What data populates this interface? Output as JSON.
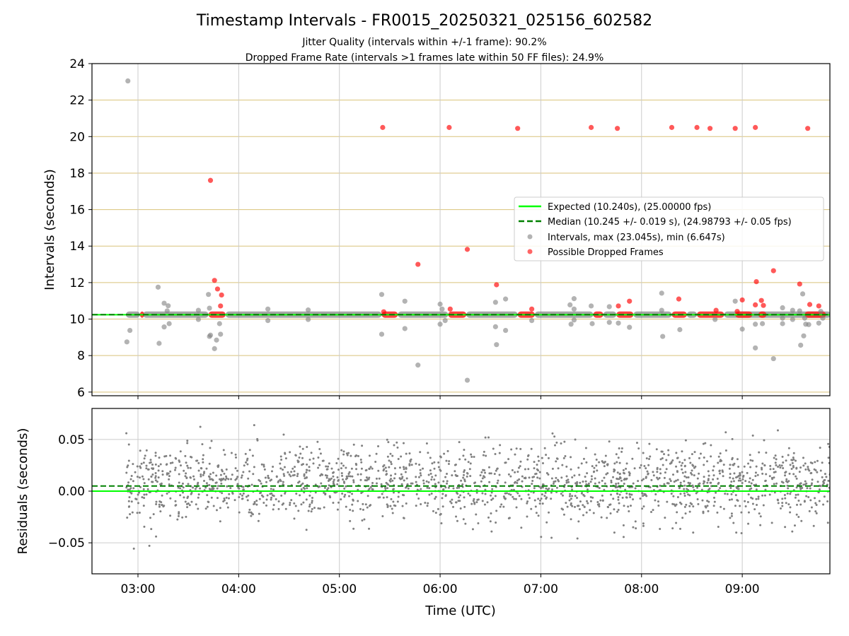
{
  "chart_data": [
    {
      "type": "scatter",
      "title": "Timestamp Intervals - FR0015_20250321_025156_602582",
      "subtitle_1": "Jitter Quality (intervals within +/-1 frame): 90.2%",
      "subtitle_2": "Dropped Frame Rate (intervals >1 frames late within 50 FF files): 24.9%",
      "xlabel": "",
      "ylabel": "Intervals (seconds)",
      "ylim": [
        5.8,
        24
      ],
      "yticks": [
        6,
        8,
        10,
        12,
        14,
        16,
        18,
        20,
        22,
        24
      ],
      "ytick_labels": [
        "6",
        "8",
        "10",
        "12",
        "14",
        "16",
        "18",
        "20",
        "22",
        "24"
      ],
      "xlim_hours": [
        2.5434,
        9.8701
      ],
      "xticks_hours": [
        3,
        4,
        5,
        6,
        7,
        8,
        9
      ],
      "grid": true,
      "minor_hlines": [
        6,
        8,
        10,
        12,
        14,
        16,
        18,
        20,
        22,
        24
      ],
      "legend_position": "center-right",
      "expected_line": {
        "value": 10.24,
        "color": "#00ff00",
        "label": "Expected (10.240s), (25.00000 fps)"
      },
      "median_line": {
        "value": 10.245,
        "color": "#008000",
        "label": "Median (10.245 +/- 0.019 s), (24.98793 +/- 0.05 fps)"
      },
      "series": [
        {
          "name": "Intervals, max (23.045s), min (6.647s)",
          "color": "#808080",
          "band": {
            "y": 10.245,
            "segments": [
              [
                2.88,
                3.02
              ],
              [
                3.05,
                3.7
              ],
              [
                3.87,
                5.42
              ],
              [
                5.58,
                6.08
              ],
              [
                6.26,
                6.77
              ],
              [
                6.94,
                7.52
              ],
              [
                7.62,
                7.75
              ],
              [
                7.92,
                8.3
              ],
              [
                8.45,
                8.55
              ],
              [
                8.82,
                9.88
              ]
            ]
          },
          "points": [
            {
              "x": 2.9,
              "y": 23.05
            },
            {
              "x": 2.89,
              "y": 8.75
            },
            {
              "x": 2.92,
              "y": 9.38
            },
            {
              "x": 3.2,
              "y": 11.75
            },
            {
              "x": 3.21,
              "y": 8.67
            },
            {
              "x": 3.26,
              "y": 10.87
            },
            {
              "x": 3.26,
              "y": 9.57
            },
            {
              "x": 3.3,
              "y": 10.73
            },
            {
              "x": 3.31,
              "y": 9.75
            },
            {
              "x": 3.29,
              "y": 10.45
            },
            {
              "x": 3.6,
              "y": 10.48
            },
            {
              "x": 3.6,
              "y": 9.98
            },
            {
              "x": 3.7,
              "y": 11.35
            },
            {
              "x": 3.71,
              "y": 10.6
            },
            {
              "x": 3.72,
              "y": 9.12
            },
            {
              "x": 3.71,
              "y": 9.05
            },
            {
              "x": 3.76,
              "y": 8.38
            },
            {
              "x": 3.78,
              "y": 8.85
            },
            {
              "x": 3.82,
              "y": 9.17
            },
            {
              "x": 3.81,
              "y": 9.75
            },
            {
              "x": 4.29,
              "y": 10.55
            },
            {
              "x": 4.29,
              "y": 9.92
            },
            {
              "x": 4.69,
              "y": 10.5
            },
            {
              "x": 4.69,
              "y": 9.98
            },
            {
              "x": 5.42,
              "y": 11.35
            },
            {
              "x": 5.42,
              "y": 9.17
            },
            {
              "x": 5.65,
              "y": 10.98
            },
            {
              "x": 5.65,
              "y": 9.48
            },
            {
              "x": 5.78,
              "y": 7.48
            },
            {
              "x": 6.0,
              "y": 10.82
            },
            {
              "x": 6.02,
              "y": 10.55
            },
            {
              "x": 6.0,
              "y": 9.72
            },
            {
              "x": 6.05,
              "y": 9.92
            },
            {
              "x": 6.27,
              "y": 6.65
            },
            {
              "x": 6.55,
              "y": 10.92
            },
            {
              "x": 6.55,
              "y": 9.58
            },
            {
              "x": 6.56,
              "y": 8.6
            },
            {
              "x": 6.65,
              "y": 11.1
            },
            {
              "x": 6.65,
              "y": 9.38
            },
            {
              "x": 6.91,
              "y": 9.92
            },
            {
              "x": 7.29,
              "y": 10.78
            },
            {
              "x": 7.3,
              "y": 9.72
            },
            {
              "x": 7.33,
              "y": 11.12
            },
            {
              "x": 7.33,
              "y": 10.55
            },
            {
              "x": 7.33,
              "y": 9.95
            },
            {
              "x": 7.5,
              "y": 10.72
            },
            {
              "x": 7.51,
              "y": 9.75
            },
            {
              "x": 7.68,
              "y": 10.68
            },
            {
              "x": 7.68,
              "y": 9.82
            },
            {
              "x": 7.77,
              "y": 9.78
            },
            {
              "x": 7.88,
              "y": 9.55
            },
            {
              "x": 8.2,
              "y": 11.42
            },
            {
              "x": 8.2,
              "y": 10.48
            },
            {
              "x": 8.21,
              "y": 9.05
            },
            {
              "x": 8.38,
              "y": 9.42
            },
            {
              "x": 8.73,
              "y": 9.98
            },
            {
              "x": 8.93,
              "y": 10.98
            },
            {
              "x": 9.0,
              "y": 9.45
            },
            {
              "x": 9.13,
              "y": 8.42
            },
            {
              "x": 9.13,
              "y": 9.72
            },
            {
              "x": 9.2,
              "y": 9.75
            },
            {
              "x": 9.31,
              "y": 7.83
            },
            {
              "x": 9.4,
              "y": 10.62
            },
            {
              "x": 9.4,
              "y": 9.75
            },
            {
              "x": 9.4,
              "y": 10.05
            },
            {
              "x": 9.5,
              "y": 10.48
            },
            {
              "x": 9.5,
              "y": 9.98
            },
            {
              "x": 9.57,
              "y": 10.45
            },
            {
              "x": 9.58,
              "y": 8.57
            },
            {
              "x": 9.6,
              "y": 11.38
            },
            {
              "x": 9.61,
              "y": 9.08
            },
            {
              "x": 9.62,
              "y": 10.05
            },
            {
              "x": 9.63,
              "y": 9.72
            },
            {
              "x": 9.66,
              "y": 9.7
            },
            {
              "x": 9.76,
              "y": 9.78
            },
            {
              "x": 9.78,
              "y": 10.42
            },
            {
              "x": 9.8,
              "y": 10.05
            }
          ]
        },
        {
          "name": "Possible Dropped Frames",
          "color": "#ff0000",
          "clusters": [
            [
              3.02,
              3.06
            ],
            [
              3.7,
              3.87
            ],
            [
              5.42,
              5.58
            ],
            [
              6.08,
              6.26
            ],
            [
              6.77,
              6.94
            ],
            [
              7.52,
              7.62
            ],
            [
              7.75,
              7.92
            ],
            [
              8.3,
              8.45
            ],
            [
              8.55,
              8.82
            ],
            [
              8.93,
              9.1
            ],
            [
              9.16,
              9.24
            ],
            [
              9.62,
              9.83
            ]
          ],
          "points": [
            {
              "x": 3.72,
              "y": 17.6
            },
            {
              "x": 3.76,
              "y": 12.12
            },
            {
              "x": 3.79,
              "y": 11.65
            },
            {
              "x": 3.83,
              "y": 11.32
            },
            {
              "x": 3.82,
              "y": 10.72
            },
            {
              "x": 5.43,
              "y": 20.5
            },
            {
              "x": 5.44,
              "y": 10.4
            },
            {
              "x": 5.78,
              "y": 13.0
            },
            {
              "x": 6.09,
              "y": 20.5
            },
            {
              "x": 6.1,
              "y": 10.55
            },
            {
              "x": 6.27,
              "y": 13.82
            },
            {
              "x": 6.56,
              "y": 11.88
            },
            {
              "x": 6.77,
              "y": 20.45
            },
            {
              "x": 6.91,
              "y": 10.55
            },
            {
              "x": 7.5,
              "y": 20.5
            },
            {
              "x": 7.76,
              "y": 20.45
            },
            {
              "x": 7.77,
              "y": 10.72
            },
            {
              "x": 7.88,
              "y": 10.98
            },
            {
              "x": 8.3,
              "y": 20.5
            },
            {
              "x": 8.37,
              "y": 11.1
            },
            {
              "x": 8.55,
              "y": 20.5
            },
            {
              "x": 8.68,
              "y": 20.45
            },
            {
              "x": 8.74,
              "y": 10.48
            },
            {
              "x": 8.93,
              "y": 20.45
            },
            {
              "x": 8.95,
              "y": 10.42
            },
            {
              "x": 9.0,
              "y": 11.05
            },
            {
              "x": 9.13,
              "y": 20.5
            },
            {
              "x": 9.14,
              "y": 12.05
            },
            {
              "x": 9.13,
              "y": 10.78
            },
            {
              "x": 9.19,
              "y": 11.02
            },
            {
              "x": 9.21,
              "y": 10.75
            },
            {
              "x": 9.31,
              "y": 12.65
            },
            {
              "x": 9.57,
              "y": 11.92
            },
            {
              "x": 9.65,
              "y": 20.45
            },
            {
              "x": 9.67,
              "y": 10.8
            },
            {
              "x": 9.76,
              "y": 10.72
            }
          ]
        }
      ]
    },
    {
      "type": "scatter",
      "title": "",
      "xlabel": "Time (UTC)",
      "ylabel": "Residuals (seconds)",
      "ylim": [
        -0.08,
        0.08
      ],
      "yticks": [
        -0.05,
        0,
        0.05
      ],
      "ytick_labels": [
        "−0.05",
        "0.00",
        "0.05"
      ],
      "xlim_hours": [
        2.5434,
        9.8701
      ],
      "xticks_hours": [
        3,
        4,
        5,
        6,
        7,
        8,
        9
      ],
      "xtick_labels": [
        "03:00",
        "04:00",
        "05:00",
        "06:00",
        "07:00",
        "08:00",
        "09:00"
      ],
      "grid": true,
      "expected_line": {
        "value": 0.0,
        "color": "#00ff00"
      },
      "median_line": {
        "value": 0.005,
        "color": "#008000"
      },
      "residual_series": {
        "name": "Residuals",
        "color": "#808080",
        "x_range_hours": [
          2.88,
          9.88
        ],
        "mean": 0.007,
        "std": 0.018,
        "count": 1900
      }
    }
  ]
}
